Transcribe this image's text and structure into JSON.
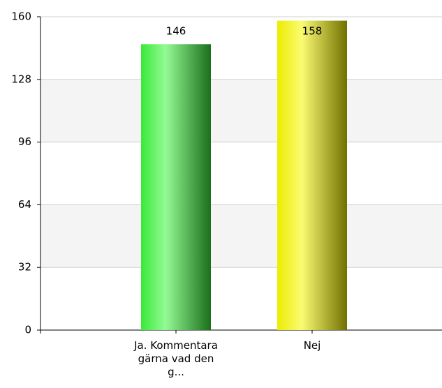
{
  "chart_data": {
    "type": "bar",
    "categories": [
      "Ja. Kommentara gärna vad den g...",
      "Nej"
    ],
    "values": [
      146,
      158
    ],
    "colors": [
      "#3cf53c",
      "#f8f800"
    ],
    "ylim": [
      0,
      160
    ],
    "yticks": [
      0,
      32,
      64,
      96,
      128,
      160
    ],
    "grid": true
  }
}
